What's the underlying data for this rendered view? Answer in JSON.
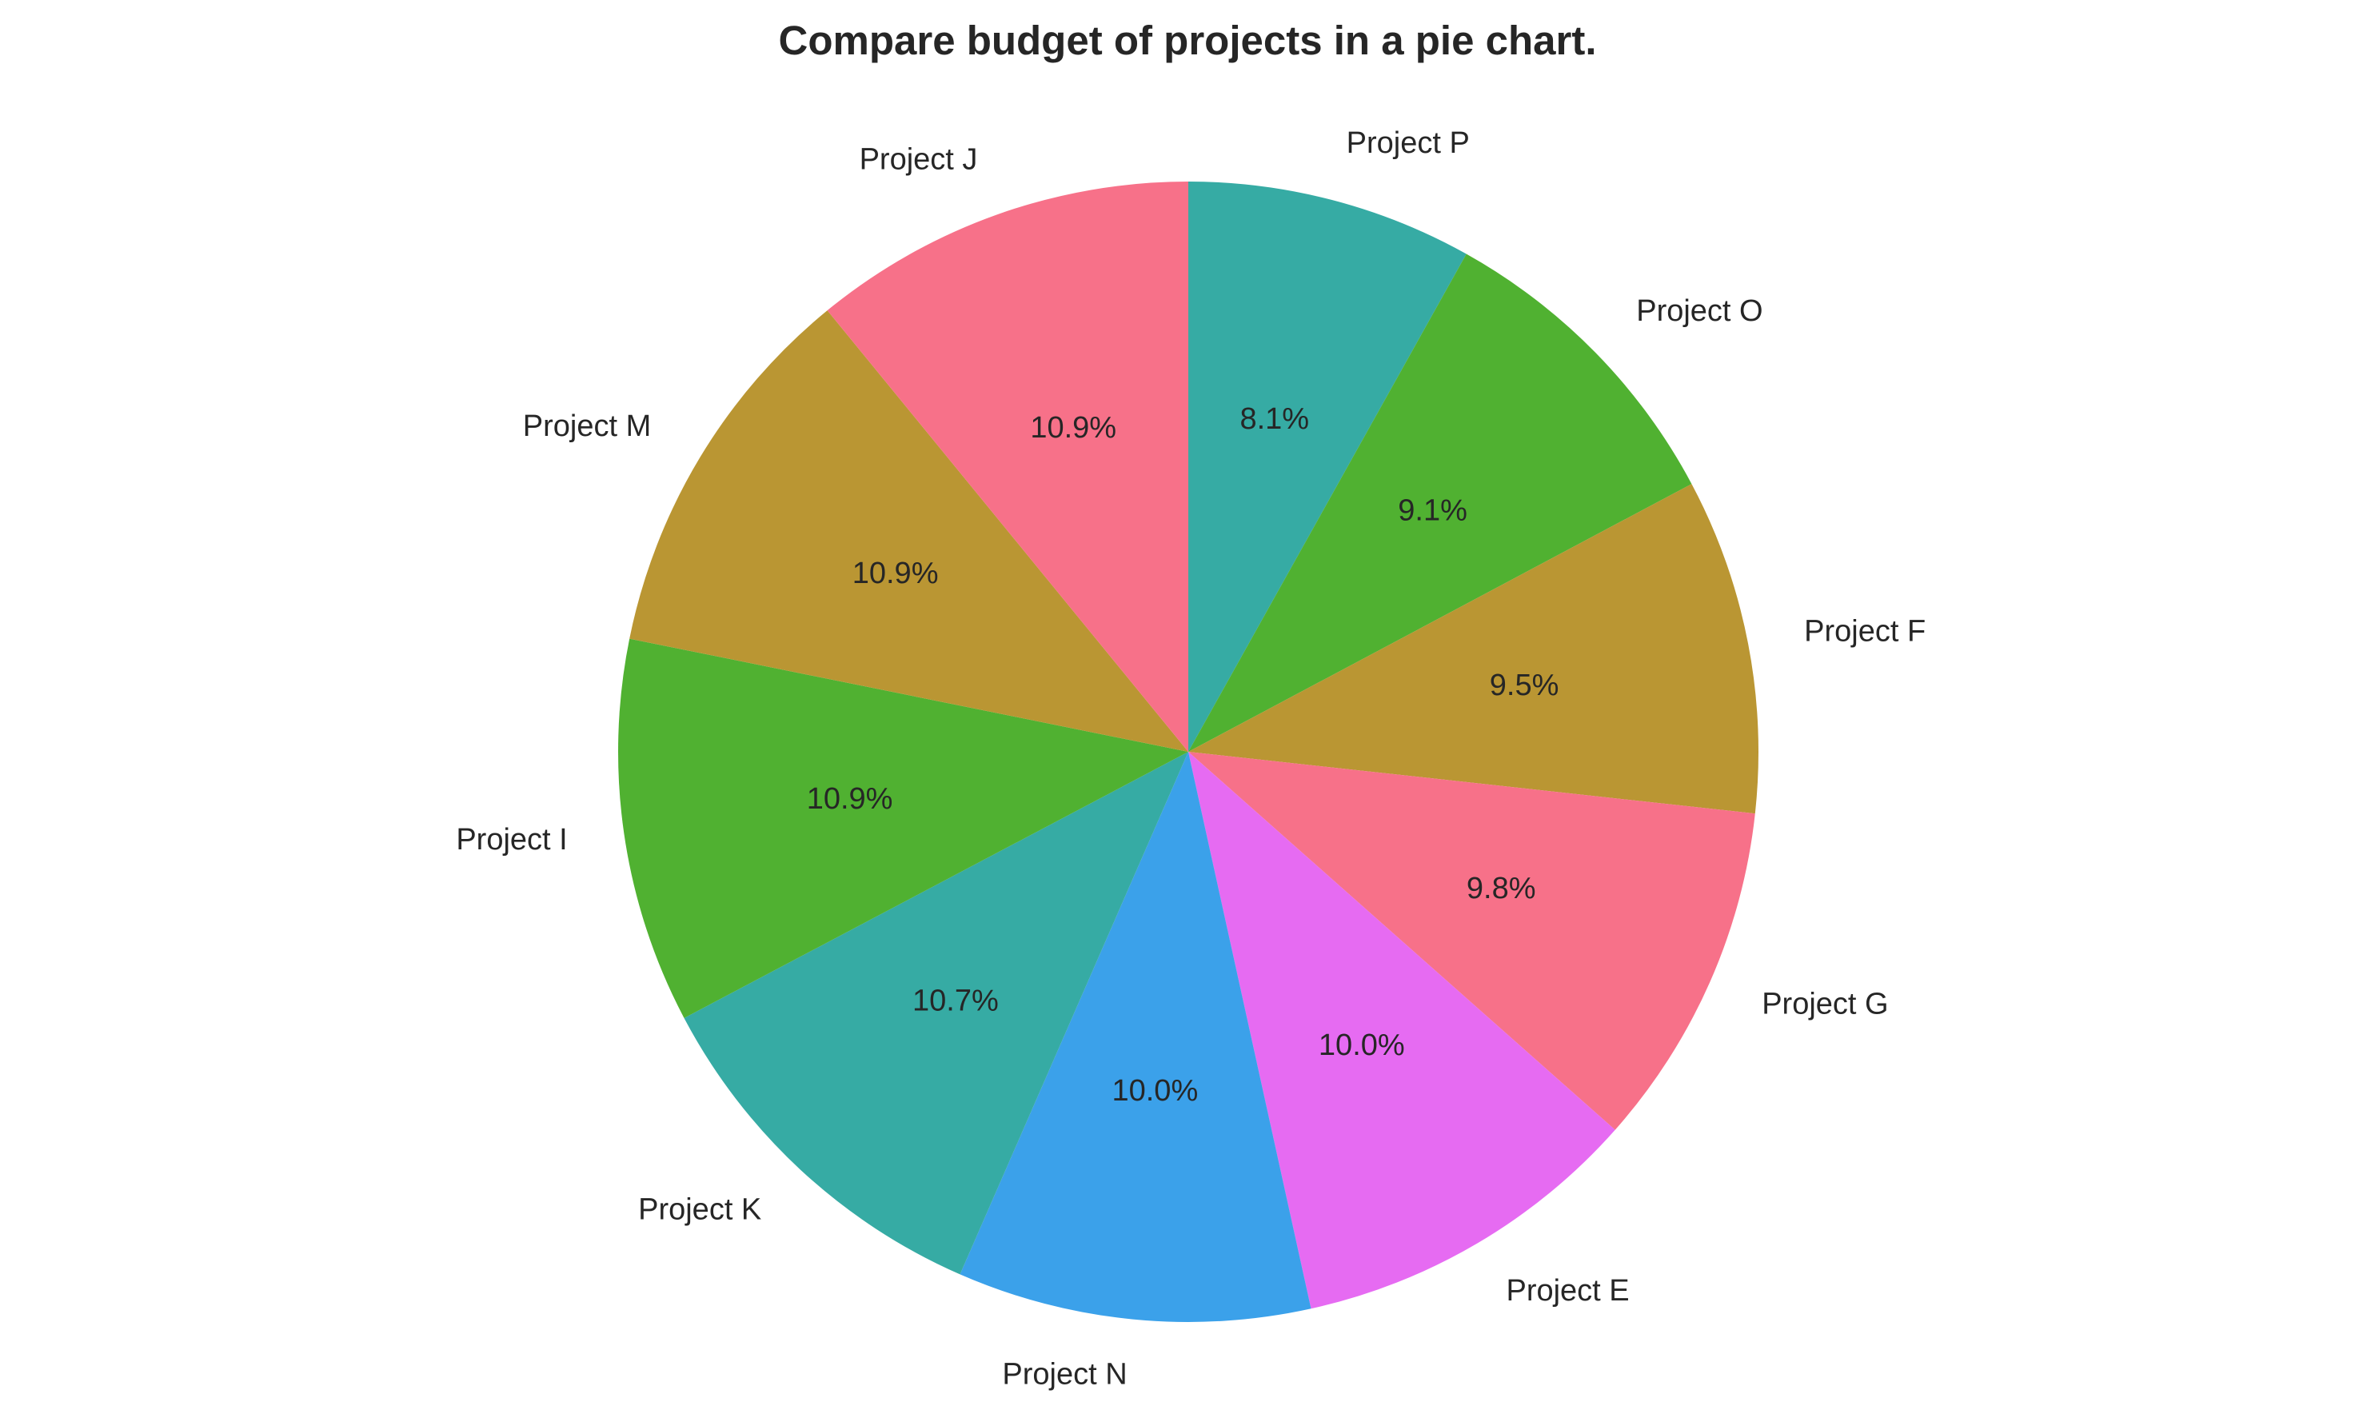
{
  "chart_data": {
    "type": "pie",
    "title": "Compare budget of projects in a pie chart.",
    "start_angle_deg": 90,
    "direction": "clockwise",
    "slices": [
      {
        "label": "Project P",
        "value": 8.1,
        "pct_label": "8.1%",
        "color": "#36ABA4"
      },
      {
        "label": "Project O",
        "value": 9.1,
        "pct_label": "9.1%",
        "color": "#50B131"
      },
      {
        "label": "Project F",
        "value": 9.5,
        "pct_label": "9.5%",
        "color": "#BA9633"
      },
      {
        "label": "Project G",
        "value": 9.8,
        "pct_label": "9.8%",
        "color": "#F77189"
      },
      {
        "label": "Project E",
        "value": 10.0,
        "pct_label": "10.0%",
        "color": "#E66BF2"
      },
      {
        "label": "Project N",
        "value": 10.0,
        "pct_label": "10.0%",
        "color": "#3BA1EA"
      },
      {
        "label": "Project K",
        "value": 10.7,
        "pct_label": "10.7%",
        "color": "#36ABA4"
      },
      {
        "label": "Project I",
        "value": 10.9,
        "pct_label": "10.9%",
        "color": "#50B131"
      },
      {
        "label": "Project M",
        "value": 10.9,
        "pct_label": "10.9%",
        "color": "#BA9633"
      },
      {
        "label": "Project J",
        "value": 10.9,
        "pct_label": "10.9%",
        "color": "#F77189"
      }
    ]
  }
}
